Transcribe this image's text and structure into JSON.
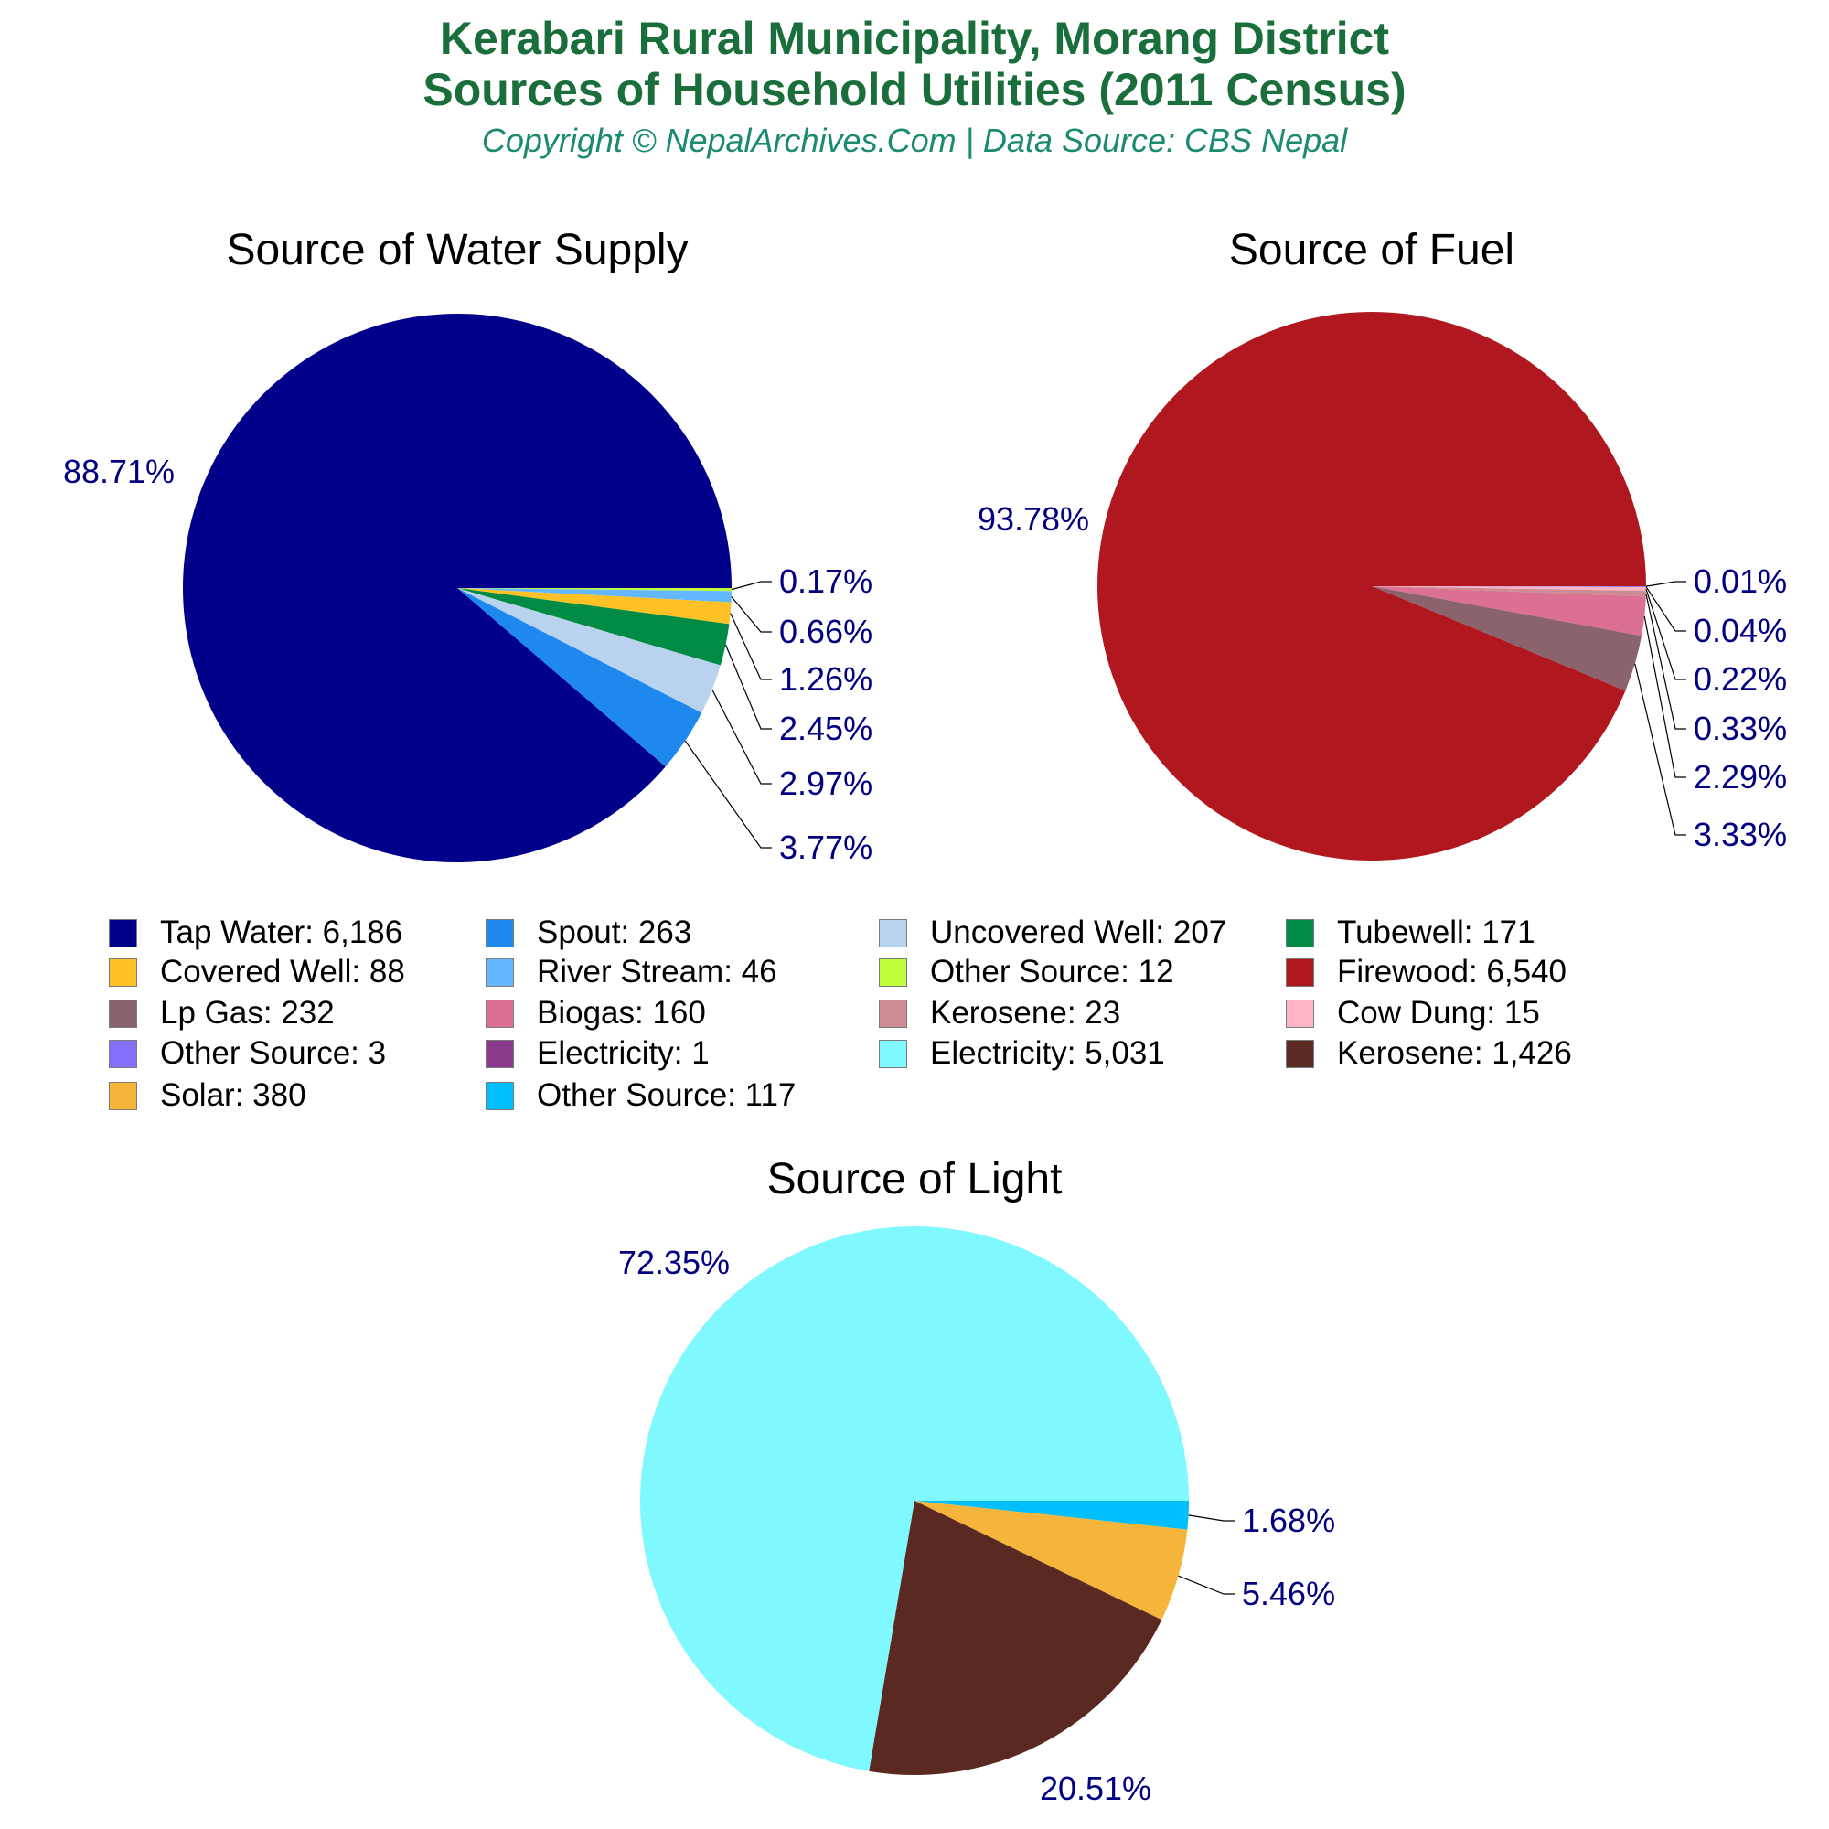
{
  "header": {
    "title_line1": "Kerabari Rural Municipality, Morang District",
    "title_line2": "Sources of Household Utilities (2011 Census)",
    "subtitle": "Copyright © NepalArchives.Com | Data Source: CBS Nepal"
  },
  "colors": {
    "title": "#1a6e3c",
    "subtitle": "#1a8a70",
    "pct_label": "#000080",
    "leader_line": "#000000"
  },
  "chart_data": [
    {
      "type": "pie",
      "title": "Source of Water Supply",
      "center": [
        500,
        643
      ],
      "radius": 300,
      "start_angle_deg": 0,
      "direction": "clockwise",
      "slices": [
        {
          "label": "Other Source",
          "value": 12,
          "pct": "0.17%",
          "color": "#bfff3a"
        },
        {
          "label": "River Stream",
          "value": 46,
          "pct": "0.66%",
          "color": "#63b8ff"
        },
        {
          "label": "Covered Well",
          "value": 88,
          "pct": "1.26%",
          "color": "#ffc125"
        },
        {
          "label": "Tubewell",
          "value": 171,
          "pct": "2.45%",
          "color": "#008b45"
        },
        {
          "label": "Uncovered Well",
          "value": 207,
          "pct": "2.97%",
          "color": "#b9d3ee"
        },
        {
          "label": "Spout",
          "value": 263,
          "pct": "3.77%",
          "color": "#1e88ef"
        },
        {
          "label": "Tap Water",
          "value": 6186,
          "pct": "88.71%",
          "color": "#00008b"
        }
      ],
      "small_label_positions": [
        [
          852,
          648
        ],
        [
          852,
          703
        ],
        [
          852,
          755
        ],
        [
          852,
          809
        ],
        [
          852,
          869
        ],
        [
          852,
          939
        ]
      ],
      "big_label_position": [
        130,
        528
      ]
    },
    {
      "type": "pie",
      "title": "Source of Fuel",
      "center": [
        1500,
        641
      ],
      "radius": 300,
      "start_angle_deg": 0,
      "direction": "clockwise",
      "slices": [
        {
          "label": "Electricity",
          "value": 1,
          "pct": "0.01%",
          "color": "#8b3a8b"
        },
        {
          "label": "Other Source",
          "value": 3,
          "pct": "0.04%",
          "color": "#8470ff"
        },
        {
          "label": "Cow Dung",
          "value": 15,
          "pct": "0.22%",
          "color": "#ffb5c5"
        },
        {
          "label": "Kerosene",
          "value": 23,
          "pct": "0.33%",
          "color": "#cd8c95"
        },
        {
          "label": "Biogas",
          "value": 160,
          "pct": "2.29%",
          "color": "#db7093"
        },
        {
          "label": "Lp Gas",
          "value": 232,
          "pct": "3.33%",
          "color": "#8b636c"
        },
        {
          "label": "Firewood",
          "value": 6540,
          "pct": "93.78%",
          "color": "#b0171f"
        }
      ],
      "small_label_positions": [
        [
          1852,
          648
        ],
        [
          1852,
          702
        ],
        [
          1852,
          755
        ],
        [
          1852,
          809
        ],
        [
          1852,
          862
        ],
        [
          1852,
          925
        ]
      ],
      "big_label_position": [
        1130,
        580
      ]
    },
    {
      "type": "pie",
      "title": "Source of Light",
      "center": [
        1000,
        1641
      ],
      "radius": 300,
      "start_angle_deg": 0,
      "direction": "clockwise",
      "slices": [
        {
          "label": "Other Source",
          "value": 117,
          "pct": "1.68%",
          "color": "#00bfff"
        },
        {
          "label": "Solar",
          "value": 380,
          "pct": "5.46%",
          "color": "#f5b53a"
        },
        {
          "label": "Kerosene",
          "value": 1426,
          "pct": "20.51%",
          "color": "#5a2a22"
        },
        {
          "label": "Electricity",
          "value": 5031,
          "pct": "72.35%",
          "color": "#7ff8ff"
        }
      ],
      "small_label_positions": [
        [
          1358,
          1675
        ],
        [
          1358,
          1755
        ]
      ],
      "big_label_positions": [
        [
          1198,
          1968
        ],
        [
          737,
          1393
        ]
      ]
    }
  ],
  "legend": {
    "items": [
      {
        "label": "Tap Water: 6,186",
        "color": "#00008b"
      },
      {
        "label": "Spout: 263",
        "color": "#1e88ef"
      },
      {
        "label": "Uncovered Well: 207",
        "color": "#b9d3ee"
      },
      {
        "label": "Tubewell: 171",
        "color": "#008b45"
      },
      {
        "label": "Covered Well: 88",
        "color": "#ffc125"
      },
      {
        "label": "River Stream: 46",
        "color": "#63b8ff"
      },
      {
        "label": "Other Source: 12",
        "color": "#bfff3a"
      },
      {
        "label": "Firewood: 6,540",
        "color": "#b0171f"
      },
      {
        "label": "Lp Gas: 232",
        "color": "#8b636c"
      },
      {
        "label": "Biogas: 160",
        "color": "#db7093"
      },
      {
        "label": "Kerosene: 23",
        "color": "#cd8c95"
      },
      {
        "label": "Cow Dung: 15",
        "color": "#ffb5c5"
      },
      {
        "label": "Other Source: 3",
        "color": "#8470ff"
      },
      {
        "label": "Electricity: 1",
        "color": "#8b3a8b"
      },
      {
        "label": "Electricity: 5,031",
        "color": "#7ff8ff"
      },
      {
        "label": "Kerosene: 1,426",
        "color": "#5a2a22"
      },
      {
        "label": "Solar: 380",
        "color": "#f5b53a"
      },
      {
        "label": "Other Source: 117",
        "color": "#00bfff"
      }
    ]
  }
}
